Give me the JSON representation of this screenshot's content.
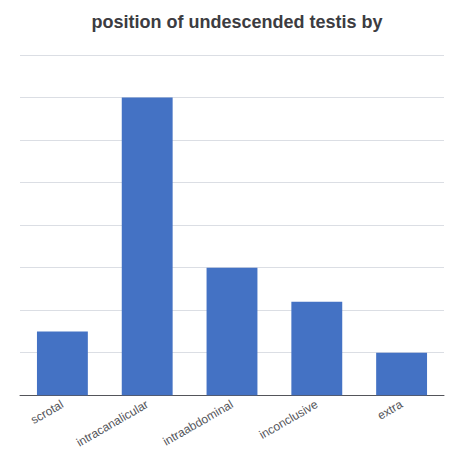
{
  "chart_data": {
    "type": "bar",
    "title": "position of undescended testis by",
    "categories": [
      "scrotal",
      "intracanalicular",
      "intraabdominal",
      "inconclusive",
      "extra"
    ],
    "values": [
      15,
      70,
      30,
      22,
      10
    ],
    "color": "#4472C4",
    "ylim": [
      0,
      80
    ],
    "yticks": [
      0,
      10,
      20,
      30,
      40,
      50,
      60,
      70,
      80
    ],
    "grid": true,
    "tick_labels": "x"
  }
}
